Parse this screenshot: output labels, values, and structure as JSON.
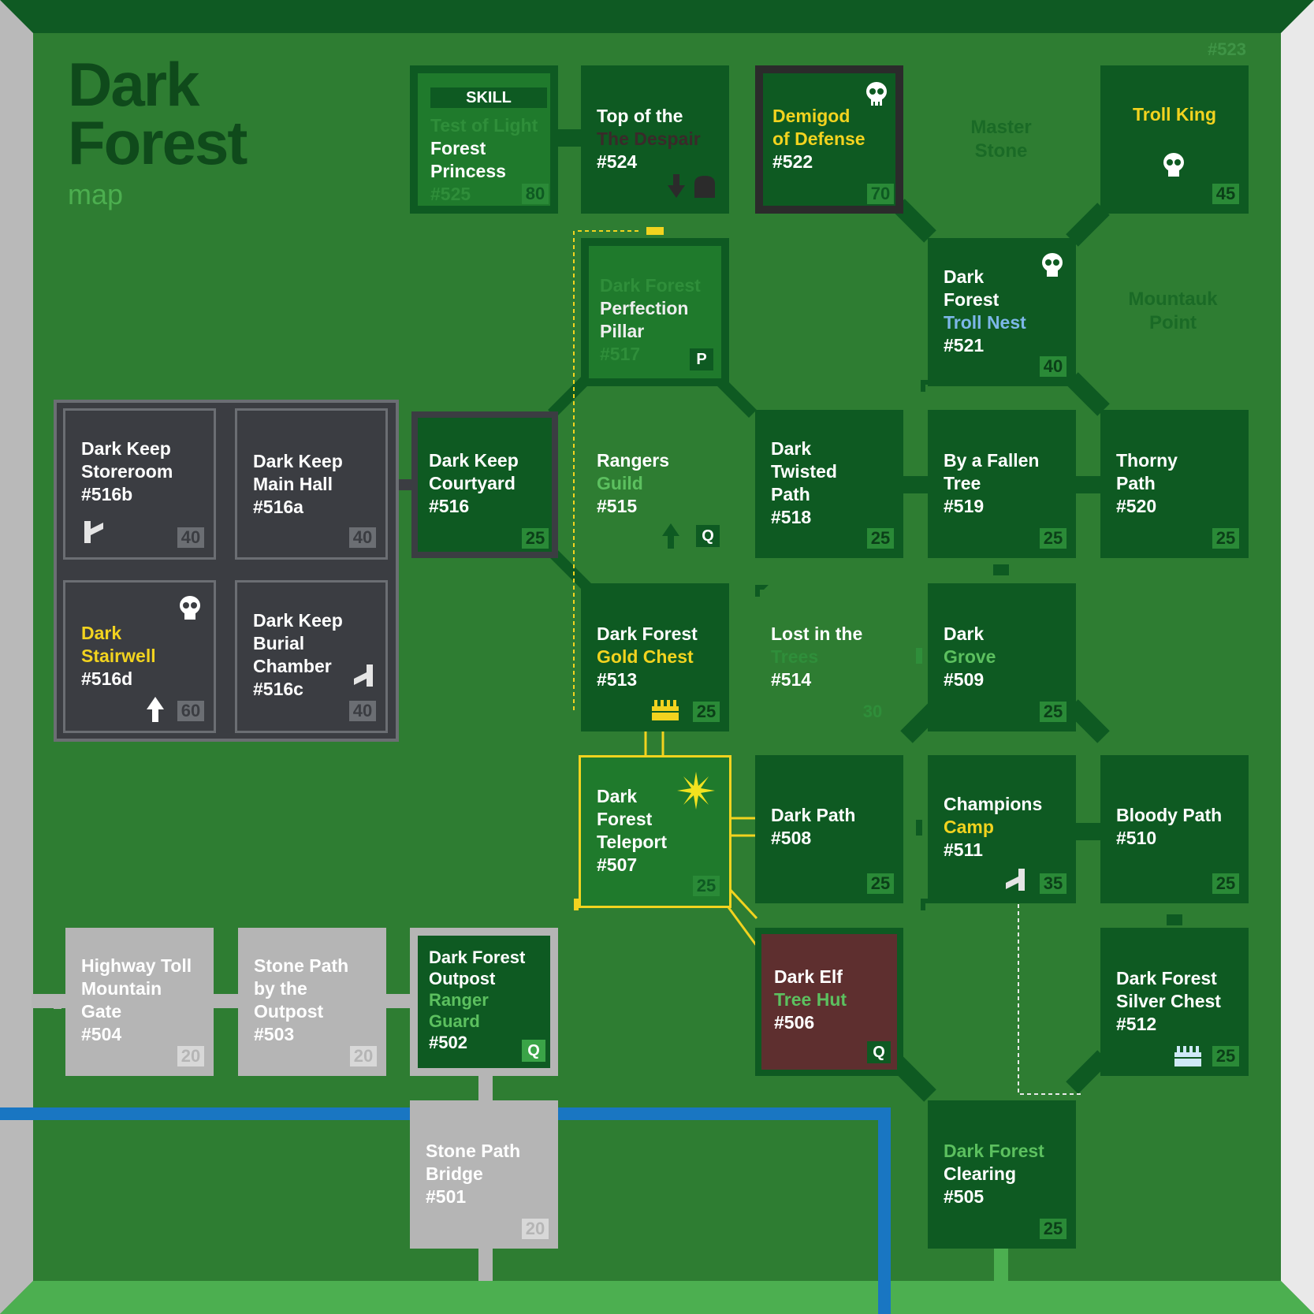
{
  "title": {
    "line1": "Dark",
    "line2": "Forest",
    "subtitle": "map",
    "map_id": "#523"
  },
  "labels": {
    "master_stone": [
      "Master",
      "Stone"
    ],
    "mountauk_point": [
      "Mountauk",
      "Point"
    ]
  },
  "colors": {
    "background": "#2e7d32",
    "room": "#0e5a22",
    "keep": "#3b3d42",
    "stone": "#b5b5b5",
    "accent": "#f2d31f",
    "river": "#1976c2"
  },
  "rooms": {
    "r525": {
      "header": "SKILL",
      "lines": [
        "Test of Light",
        "Forest",
        "Princess",
        "#525"
      ],
      "level": "80"
    },
    "r524": {
      "lines": [
        "Top of the",
        "The Despair",
        "#524"
      ],
      "icons": [
        "down-arrow-icon",
        "tombstone-icon"
      ]
    },
    "r522": {
      "lines": [
        "Demigod",
        "of Defense",
        "#522"
      ],
      "level": "70",
      "icons": [
        "skull-icon"
      ]
    },
    "r_troll": {
      "lines": [
        "Troll King"
      ],
      "level": "45",
      "icons": [
        "skull-icon"
      ]
    },
    "r517": {
      "lines": [
        "Dark Forest",
        "Perfection",
        "Pillar",
        "#517"
      ],
      "badge": "P"
    },
    "r521": {
      "lines": [
        "Dark",
        "Forest",
        "Troll Nest",
        "#521"
      ],
      "level": "40",
      "icons": [
        "skull-icon"
      ]
    },
    "r516b": {
      "lines": [
        "Dark Keep",
        "Storeroom",
        "#516b"
      ],
      "level": "40"
    },
    "r516a": {
      "lines": [
        "Dark Keep",
        "Main Hall",
        "#516a"
      ],
      "level": "40"
    },
    "r516": {
      "lines": [
        "Dark Keep",
        "Courtyard",
        "#516"
      ],
      "level": "25"
    },
    "r515": {
      "lines": [
        "Rangers",
        "Guild",
        "#515"
      ],
      "badge": "Q"
    },
    "r518": {
      "lines": [
        "Dark",
        "Twisted",
        "Path",
        "#518"
      ],
      "level": "25"
    },
    "r519": {
      "lines": [
        "By a Fallen",
        "Tree",
        "#519"
      ],
      "level": "25"
    },
    "r520": {
      "lines": [
        "Thorny",
        "Path",
        "#520"
      ],
      "level": "25"
    },
    "r516d": {
      "lines": [
        "Dark",
        "Stairwell",
        "#516d"
      ],
      "level": "60"
    },
    "r516c": {
      "lines": [
        "Dark Keep",
        "Burial",
        "Chamber",
        "#516c"
      ],
      "level": "40"
    },
    "r513": {
      "lines": [
        "Dark Forest",
        "Gold Chest",
        "#513"
      ],
      "level": "25"
    },
    "r514": {
      "lines": [
        "Lost in the",
        "Trees",
        "#514"
      ],
      "level": "30"
    },
    "r509": {
      "lines": [
        "Dark",
        "Grove",
        "#509"
      ],
      "level": "25"
    },
    "r507": {
      "lines": [
        "Dark",
        "Forest",
        "Teleport",
        "#507"
      ],
      "level": "25"
    },
    "r508": {
      "lines": [
        "Dark Path",
        "#508"
      ],
      "level": "25"
    },
    "r511": {
      "lines": [
        "Champions",
        "Camp",
        "#511"
      ],
      "level": "35"
    },
    "r510": {
      "lines": [
        "Bloody Path",
        "#510"
      ],
      "level": "25"
    },
    "r504": {
      "lines": [
        "Highway Toll",
        "Mountain",
        "Gate",
        "#504"
      ],
      "level": "20"
    },
    "r503": {
      "lines": [
        "Stone Path",
        "by the",
        "Outpost",
        "#503"
      ],
      "level": "20"
    },
    "r502": {
      "lines": [
        "Dark Forest",
        "Outpost",
        "Ranger",
        "Guard",
        "#502"
      ],
      "badge": "Q"
    },
    "r506": {
      "lines": [
        "Dark Elf",
        "Tree Hut",
        "#506"
      ],
      "badge": "Q"
    },
    "r512": {
      "lines": [
        "Dark Forest",
        "Silver Chest",
        "#512"
      ],
      "level": "25"
    },
    "r501": {
      "lines": [
        "Stone Path",
        "Bridge",
        "#501"
      ],
      "level": "20"
    },
    "r505": {
      "lines": [
        "Dark Forest",
        "Clearing",
        "#505"
      ],
      "level": "25"
    }
  }
}
